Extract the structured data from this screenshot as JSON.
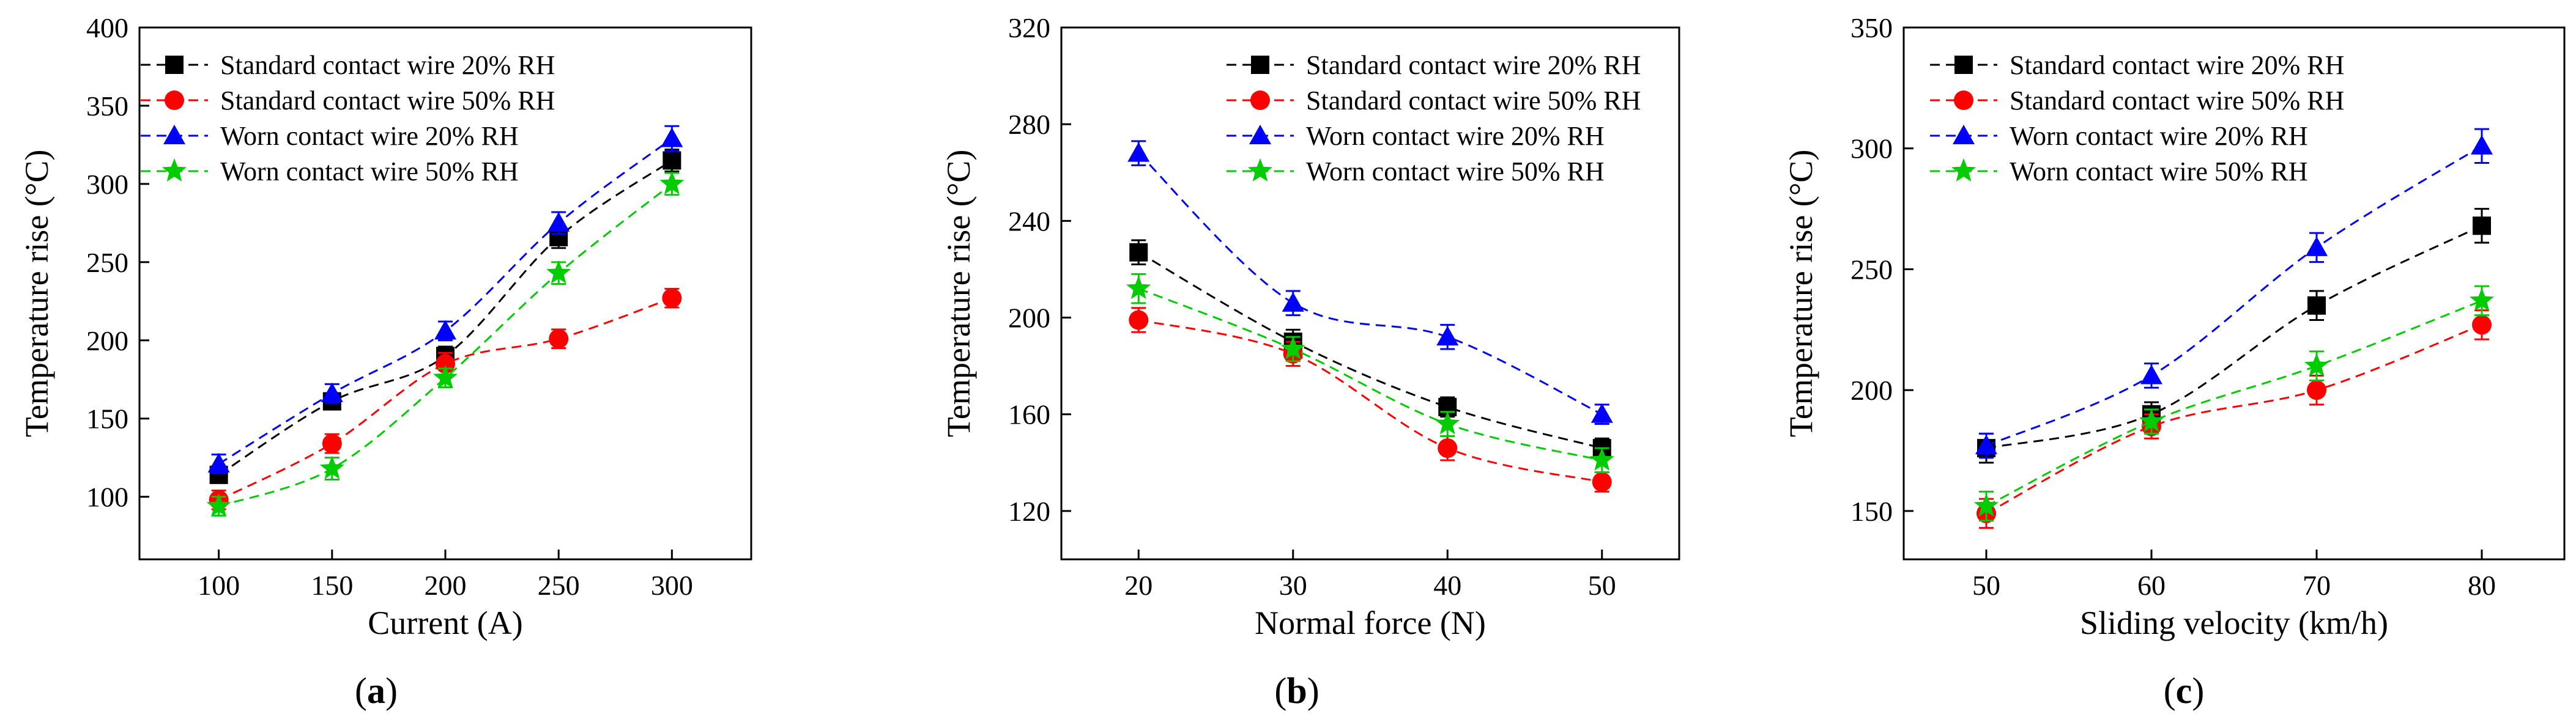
{
  "figure": {
    "panels": [
      "(a)",
      "(b)",
      "(c)"
    ]
  },
  "chart_data": [
    {
      "type": "line",
      "panel": "a",
      "panel_label": {
        "open": "(",
        "letter": "a",
        "close": ")"
      },
      "xlabel": "Current (A)",
      "ylabel": "Temperature rise (°C)",
      "x": [
        100,
        150,
        200,
        250,
        300
      ],
      "xlim": [
        65,
        335
      ],
      "ylim": [
        60,
        400
      ],
      "xticks": [
        100,
        150,
        200,
        250,
        300
      ],
      "yticks": [
        100,
        150,
        200,
        250,
        300,
        350,
        400
      ],
      "legend_position": "top-left",
      "series": [
        {
          "name": "Standard contact wire 20% RH",
          "marker": "square",
          "color": "#000000",
          "values": [
            114,
            161,
            190,
            266,
            315
          ],
          "errors": [
            5,
            5,
            6,
            7,
            7
          ]
        },
        {
          "name": "Standard contact wire 50% RH",
          "marker": "circle",
          "color": "#ff0000",
          "values": [
            98,
            134,
            185,
            201,
            227
          ],
          "errors": [
            6,
            6,
            7,
            6,
            6
          ]
        },
        {
          "name": "Worn contact wire 20% RH",
          "marker": "triangle",
          "color": "#0000ff",
          "values": [
            121,
            166,
            206,
            275,
            329
          ],
          "errors": [
            6,
            6,
            6,
            7,
            8
          ]
        },
        {
          "name": "Worn contact wire 50% RH",
          "marker": "star",
          "color": "#00cc00",
          "values": [
            94,
            118,
            176,
            243,
            300
          ],
          "errors": [
            6,
            7,
            6,
            7,
            7
          ]
        }
      ]
    },
    {
      "type": "line",
      "panel": "b",
      "panel_label": {
        "open": "(",
        "letter": "b",
        "close": ")"
      },
      "xlabel": "Normal force (N)",
      "ylabel": "Temperature rise (°C)",
      "x": [
        20,
        30,
        40,
        50
      ],
      "xlim": [
        15,
        55
      ],
      "ylim": [
        100,
        320
      ],
      "xticks": [
        20,
        30,
        40,
        50
      ],
      "yticks": [
        120,
        160,
        200,
        240,
        280,
        320
      ],
      "legend_position": "top-right",
      "series": [
        {
          "name": "Standard contact wire 20% RH",
          "marker": "square",
          "color": "#000000",
          "values": [
            227,
            190,
            163,
            146
          ],
          "errors": [
            5,
            5,
            4,
            4
          ]
        },
        {
          "name": "Standard contact wire 50% RH",
          "marker": "circle",
          "color": "#ff0000",
          "values": [
            199,
            185,
            146,
            132
          ],
          "errors": [
            5,
            5,
            5,
            4
          ]
        },
        {
          "name": "Worn contact wire 20% RH",
          "marker": "triangle",
          "color": "#0000ff",
          "values": [
            268,
            206,
            192,
            160
          ],
          "errors": [
            5,
            5,
            5,
            4
          ]
        },
        {
          "name": "Worn contact wire 50% RH",
          "marker": "star",
          "color": "#00cc00",
          "values": [
            212,
            187,
            156,
            141
          ],
          "errors": [
            6,
            5,
            5,
            5
          ]
        }
      ]
    },
    {
      "type": "line",
      "panel": "c",
      "panel_label": {
        "open": "(",
        "letter": "c",
        "close": ")"
      },
      "xlabel": "Sliding velocity (km/h)",
      "ylabel": "Temperature rise (°C)",
      "x": [
        50,
        60,
        70,
        80
      ],
      "xlim": [
        45,
        85
      ],
      "ylim": [
        130,
        350
      ],
      "xticks": [
        50,
        60,
        70,
        80
      ],
      "yticks": [
        150,
        200,
        250,
        300,
        350
      ],
      "legend_position": "top-left",
      "series": [
        {
          "name": "Standard contact wire 20% RH",
          "marker": "square",
          "color": "#000000",
          "values": [
            176,
            190,
            235,
            268
          ],
          "errors": [
            6,
            5,
            6,
            7
          ]
        },
        {
          "name": "Standard contact wire 50% RH",
          "marker": "circle",
          "color": "#ff0000",
          "values": [
            149,
            185,
            200,
            227
          ],
          "errors": [
            6,
            5,
            6,
            6
          ]
        },
        {
          "name": "Worn contact wire 20% RH",
          "marker": "triangle",
          "color": "#0000ff",
          "values": [
            177,
            206,
            259,
            301
          ],
          "errors": [
            5,
            5,
            6,
            7
          ]
        },
        {
          "name": "Worn contact wire 50% RH",
          "marker": "star",
          "color": "#00cc00",
          "values": [
            152,
            187,
            210,
            237
          ],
          "errors": [
            6,
            5,
            6,
            6
          ]
        }
      ]
    }
  ]
}
